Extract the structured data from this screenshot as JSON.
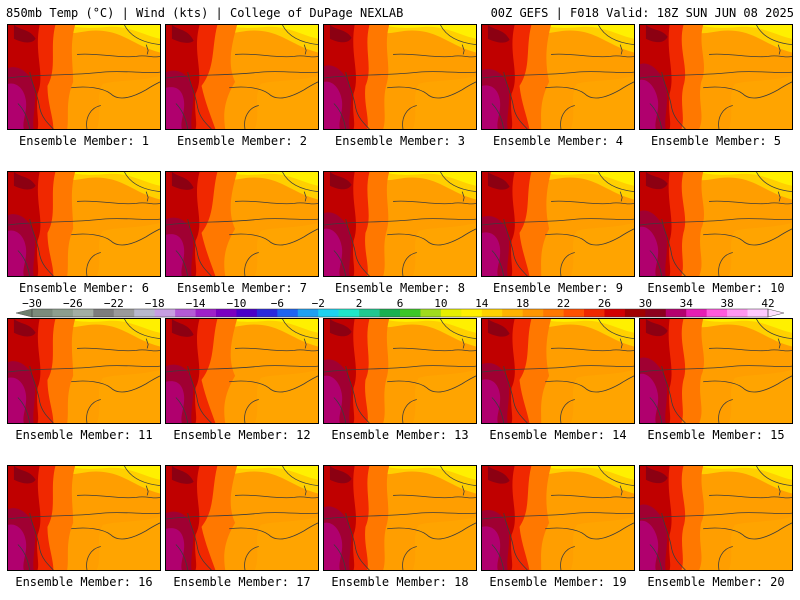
{
  "header": {
    "left": "850mb Temp (°C) | Wind (kts) | College of DuPage NEXLAB",
    "right": "00Z GEFS | F018 Valid: 18Z SUN JUN 08 2025"
  },
  "members": [
    "Ensemble Member: 1",
    "Ensemble Member: 2",
    "Ensemble Member: 3",
    "Ensemble Member: 4",
    "Ensemble Member: 5",
    "Ensemble Member: 6",
    "Ensemble Member: 7",
    "Ensemble Member: 8",
    "Ensemble Member: 9",
    "Ensemble Member: 10",
    "Ensemble Member: 11",
    "Ensemble Member: 12",
    "Ensemble Member: 13",
    "Ensemble Member: 14",
    "Ensemble Member: 15",
    "Ensemble Member: 16",
    "Ensemble Member: 17",
    "Ensemble Member: 18",
    "Ensemble Member: 19",
    "Ensemble Member: 20"
  ],
  "colorbar": {
    "labels": [
      "-30",
      "-26",
      "-22",
      "-18",
      "-14",
      "-10",
      "-6",
      "-2",
      "2",
      "6",
      "10",
      "14",
      "18",
      "22",
      "26",
      "30",
      "34",
      "38",
      "42"
    ],
    "colors": [
      "#7b8b7b",
      "#8d9e8d",
      "#a3aea3",
      "#7d7d7d",
      "#9a9a9a",
      "#b8b8cc",
      "#c79ee0",
      "#b45ad6",
      "#9e20c8",
      "#7a00c0",
      "#4a00c8",
      "#2a2adc",
      "#1e64f0",
      "#1ea0f0",
      "#1ed2f0",
      "#20e6c8",
      "#20c890",
      "#18b050",
      "#3cc828",
      "#a0dc1e",
      "#e6f000",
      "#fff000",
      "#ffd200",
      "#ffb400",
      "#ff9600",
      "#ff7800",
      "#ff5000",
      "#f02800",
      "#d20000",
      "#a00000",
      "#8c001e",
      "#b4006e",
      "#e61eb4",
      "#ff5adc",
      "#ff96f0",
      "#ffc8ff"
    ]
  }
}
